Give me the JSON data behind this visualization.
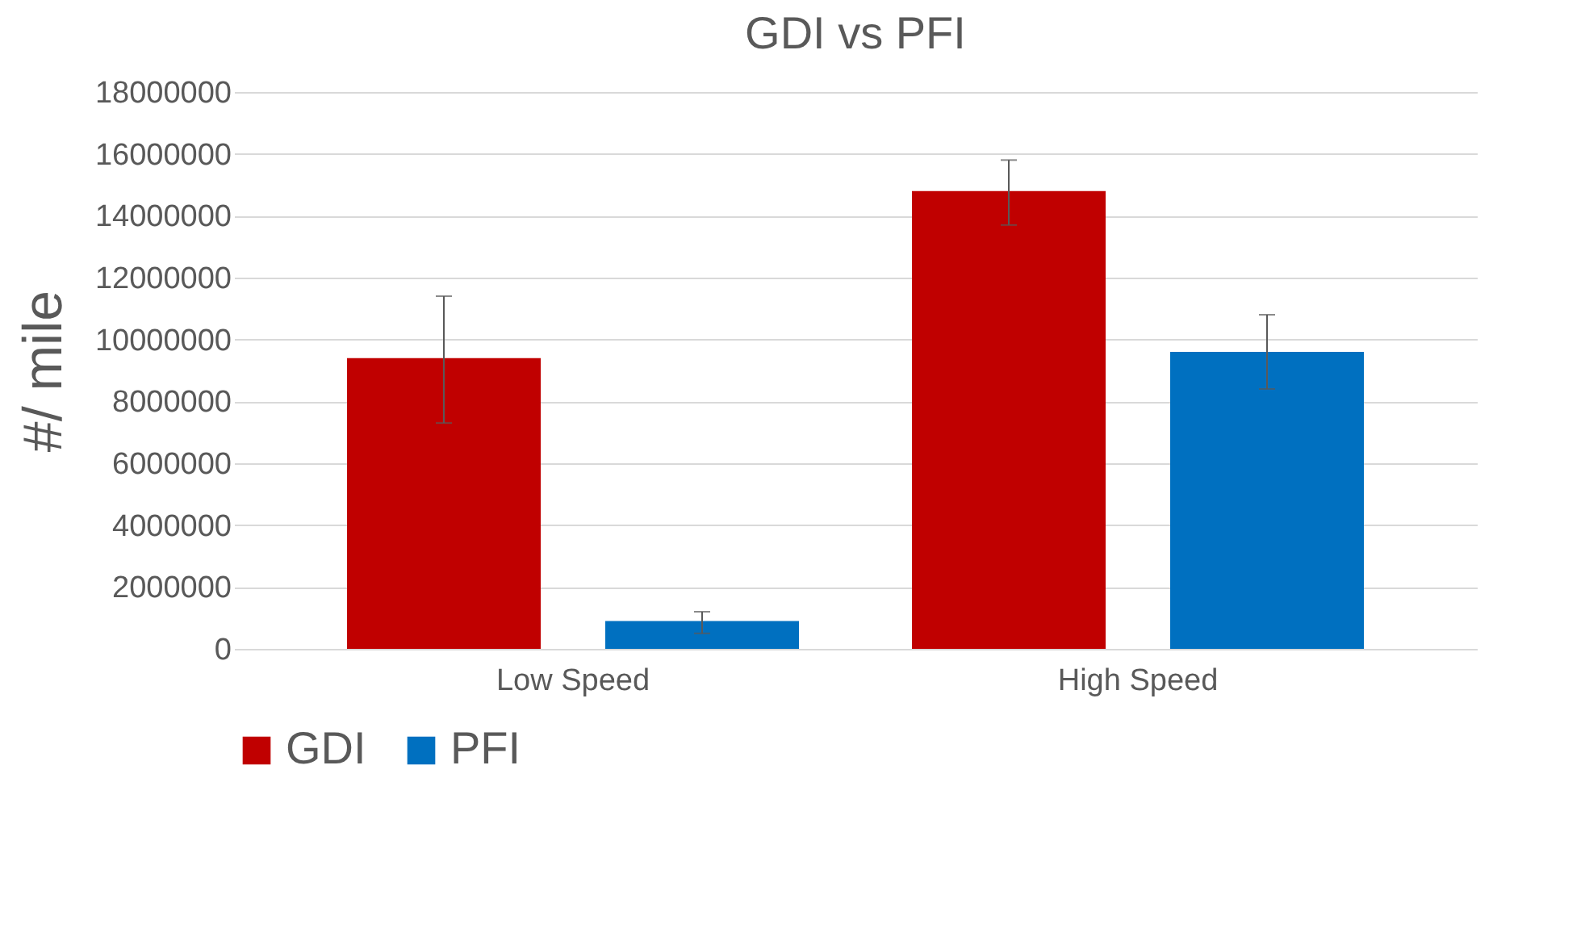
{
  "chart_data": {
    "type": "bar",
    "title": "GDI vs PFI",
    "ylabel": "#/ mile",
    "categories": [
      "Low Speed",
      "High Speed"
    ],
    "series": [
      {
        "name": "GDI",
        "color": "#c00000",
        "values": [
          9400000,
          14800000
        ],
        "errors": [
          [
            7300000,
            11400000
          ],
          [
            13700000,
            15800000
          ]
        ]
      },
      {
        "name": "PFI",
        "color": "#0070c0",
        "values": [
          900000,
          9600000
        ],
        "errors": [
          [
            500000,
            1200000
          ],
          [
            8400000,
            10800000
          ]
        ]
      }
    ],
    "ylim": [
      0,
      18000000
    ],
    "yticks": [
      0,
      2000000,
      4000000,
      6000000,
      8000000,
      10000000,
      12000000,
      14000000,
      16000000,
      18000000
    ],
    "grid": "y",
    "legend": "bottom"
  }
}
